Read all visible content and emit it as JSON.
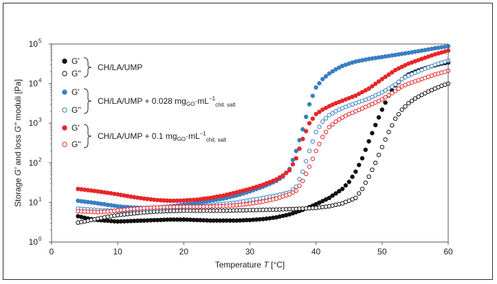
{
  "chart_data": {
    "type": "scatter",
    "xlabel_prefix": "Temperature ",
    "xlabel_var": "T",
    "xlabel_unit": " [°C]",
    "ylabel_prefix": "Storage ",
    "ylabel_var1": "G'",
    "ylabel_mid": " and loss ",
    "ylabel_var2": "G''",
    "ylabel_suffix": " moduli [Pa]",
    "xlim": [
      0,
      60
    ],
    "ylim_log10": [
      0,
      5
    ],
    "x_ticks": [
      "0",
      "10",
      "20",
      "30",
      "40",
      "50",
      "60"
    ],
    "y_ticks": [
      {
        "base": "10",
        "exp": "0"
      },
      {
        "base": "10",
        "exp": "1"
      },
      {
        "base": "10",
        "exp": "2"
      },
      {
        "base": "10",
        "exp": "3"
      },
      {
        "base": "10",
        "exp": "4"
      },
      {
        "base": "10",
        "exp": "5"
      }
    ],
    "colors": {
      "black": "#111111",
      "blue": "#3a7fc1",
      "red": "#e8262a"
    },
    "legend": [
      {
        "group": "CH/LA/UMP",
        "sub": "",
        "sub2": "",
        "color": "#111111",
        "labels": [
          "G'",
          "G''"
        ]
      },
      {
        "group": "CH/LA/UMP + 0.028 mg",
        "sub": "GO",
        "mid": "·mL",
        "sup": "−1",
        "sub2": "chit. salt",
        "color": "#3a7fc1",
        "labels": [
          "G'",
          "G''"
        ]
      },
      {
        "group": "CH/LA/UMP + 0.1 mg",
        "sub": "GO",
        "mid": "·mL",
        "sup": "−1",
        "sub2": "chit. salt",
        "color": "#e8262a",
        "labels": [
          "G'",
          "G''"
        ]
      }
    ],
    "series": [
      {
        "name": "CH/LA/UMP G'",
        "color": "#111111",
        "filled": true,
        "points": [
          [
            4,
            4.5
          ],
          [
            5,
            4.1
          ],
          [
            6,
            3.8
          ],
          [
            7,
            3.6
          ],
          [
            8,
            3.5
          ],
          [
            9,
            3.4
          ],
          [
            10,
            3.3
          ],
          [
            12,
            3.4
          ],
          [
            14,
            3.5
          ],
          [
            16,
            3.6
          ],
          [
            18,
            3.7
          ],
          [
            20,
            3.7
          ],
          [
            22,
            3.6
          ],
          [
            24,
            3.5
          ],
          [
            26,
            3.5
          ],
          [
            28,
            3.5
          ],
          [
            30,
            3.6
          ],
          [
            32,
            3.8
          ],
          [
            34,
            4.2
          ],
          [
            36,
            5
          ],
          [
            38,
            6.5
          ],
          [
            40,
            9
          ],
          [
            42,
            13
          ],
          [
            44,
            22
          ],
          [
            45,
            33
          ],
          [
            46,
            60
          ],
          [
            47,
            130
          ],
          [
            48,
            350
          ],
          [
            49,
            900
          ],
          [
            50,
            2200
          ],
          [
            51,
            5000
          ],
          [
            52,
            9000
          ],
          [
            53,
            13000
          ],
          [
            54,
            17000
          ],
          [
            55,
            20000
          ],
          [
            56,
            23000
          ],
          [
            57,
            26000
          ],
          [
            58,
            29000
          ],
          [
            59,
            32000
          ],
          [
            60,
            34000
          ]
        ]
      },
      {
        "name": "CH/LA/UMP G''",
        "color": "#111111",
        "filled": false,
        "points": [
          [
            4,
            3.1
          ],
          [
            5,
            3.3
          ],
          [
            6,
            3.6
          ],
          [
            7,
            3.9
          ],
          [
            8,
            4.2
          ],
          [
            9,
            4.5
          ],
          [
            10,
            4.8
          ],
          [
            12,
            5.2
          ],
          [
            14,
            5.6
          ],
          [
            16,
            5.9
          ],
          [
            18,
            6.1
          ],
          [
            20,
            6.2
          ],
          [
            22,
            6.2
          ],
          [
            24,
            6.2
          ],
          [
            26,
            6.2
          ],
          [
            28,
            6.3
          ],
          [
            30,
            6.4
          ],
          [
            32,
            6.5
          ],
          [
            34,
            6.6
          ],
          [
            36,
            6.8
          ],
          [
            38,
            7
          ],
          [
            40,
            7.3
          ],
          [
            42,
            8
          ],
          [
            44,
            9.5
          ],
          [
            46,
            13
          ],
          [
            47,
            22
          ],
          [
            48,
            45
          ],
          [
            49,
            100
          ],
          [
            50,
            250
          ],
          [
            51,
            600
          ],
          [
            52,
            1300
          ],
          [
            53,
            2200
          ],
          [
            54,
            3200
          ],
          [
            55,
            4200
          ],
          [
            56,
            5200
          ],
          [
            57,
            6300
          ],
          [
            58,
            7500
          ],
          [
            59,
            8800
          ],
          [
            60,
            10000
          ]
        ]
      },
      {
        "name": "CH/LA/UMP + 0.028 G'",
        "color": "#3a7fc1",
        "filled": true,
        "points": [
          [
            4,
            11
          ],
          [
            5,
            10.5
          ],
          [
            6,
            10
          ],
          [
            7,
            9.5
          ],
          [
            8,
            9
          ],
          [
            9,
            8.5
          ],
          [
            10,
            8
          ],
          [
            12,
            7.5
          ],
          [
            14,
            7.3
          ],
          [
            16,
            7.5
          ],
          [
            18,
            8
          ],
          [
            20,
            8.8
          ],
          [
            22,
            9.8
          ],
          [
            24,
            11
          ],
          [
            26,
            12.5
          ],
          [
            28,
            15
          ],
          [
            30,
            19
          ],
          [
            32,
            25
          ],
          [
            34,
            35
          ],
          [
            35,
            45
          ],
          [
            36,
            70
          ],
          [
            37,
            200
          ],
          [
            38,
            700
          ],
          [
            39,
            3000
          ],
          [
            40,
            8000
          ],
          [
            41,
            13000
          ],
          [
            42,
            18000
          ],
          [
            43,
            23000
          ],
          [
            44,
            28000
          ],
          [
            45,
            32000
          ],
          [
            46,
            36000
          ],
          [
            48,
            42000
          ],
          [
            50,
            47000
          ],
          [
            52,
            53000
          ],
          [
            54,
            60000
          ],
          [
            56,
            68000
          ],
          [
            58,
            78000
          ],
          [
            60,
            88000
          ]
        ]
      },
      {
        "name": "CH/LA/UMP + 0.028 G''",
        "color": "#3a7fc1",
        "filled": false,
        "points": [
          [
            4,
            7
          ],
          [
            5,
            6.8
          ],
          [
            6,
            6.6
          ],
          [
            7,
            6.4
          ],
          [
            8,
            6.3
          ],
          [
            9,
            6.2
          ],
          [
            10,
            6.2
          ],
          [
            12,
            6.4
          ],
          [
            14,
            6.7
          ],
          [
            16,
            7
          ],
          [
            18,
            7.3
          ],
          [
            20,
            7.6
          ],
          [
            22,
            8
          ],
          [
            24,
            8.5
          ],
          [
            26,
            9.2
          ],
          [
            28,
            10
          ],
          [
            30,
            11.5
          ],
          [
            32,
            13
          ],
          [
            34,
            15
          ],
          [
            36,
            18
          ],
          [
            37,
            25
          ],
          [
            38,
            60
          ],
          [
            39,
            200
          ],
          [
            40,
            600
          ],
          [
            41,
            1100
          ],
          [
            42,
            1600
          ],
          [
            43,
            2000
          ],
          [
            44,
            2400
          ],
          [
            45,
            2800
          ],
          [
            46,
            3200
          ],
          [
            48,
            4200
          ],
          [
            50,
            6000
          ],
          [
            52,
            9500
          ],
          [
            53,
            13000
          ],
          [
            54,
            16000
          ],
          [
            56,
            22000
          ],
          [
            58,
            30000
          ],
          [
            60,
            38000
          ]
        ]
      },
      {
        "name": "CH/LA/UMP + 0.1 G'",
        "color": "#e8262a",
        "filled": true,
        "points": [
          [
            4,
            22
          ],
          [
            5,
            21
          ],
          [
            6,
            20
          ],
          [
            7,
            19
          ],
          [
            8,
            18
          ],
          [
            9,
            17
          ],
          [
            10,
            16
          ],
          [
            12,
            14
          ],
          [
            14,
            12.5
          ],
          [
            16,
            11.5
          ],
          [
            18,
            11
          ],
          [
            20,
            11.2
          ],
          [
            22,
            11.8
          ],
          [
            24,
            13
          ],
          [
            26,
            15
          ],
          [
            28,
            18
          ],
          [
            30,
            22
          ],
          [
            32,
            28
          ],
          [
            34,
            38
          ],
          [
            35,
            48
          ],
          [
            36,
            65
          ],
          [
            37,
            130
          ],
          [
            38,
            400
          ],
          [
            39,
            1000
          ],
          [
            40,
            1700
          ],
          [
            41,
            2200
          ],
          [
            42,
            2700
          ],
          [
            43,
            3200
          ],
          [
            44,
            3700
          ],
          [
            45,
            4300
          ],
          [
            46,
            5000
          ],
          [
            48,
            7500
          ],
          [
            50,
            13000
          ],
          [
            52,
            22000
          ],
          [
            54,
            32000
          ],
          [
            56,
            42000
          ],
          [
            58,
            55000
          ],
          [
            60,
            68000
          ]
        ]
      },
      {
        "name": "CH/LA/UMP + 0.1 G''",
        "color": "#e8262a",
        "filled": false,
        "points": [
          [
            4,
            6
          ],
          [
            5,
            5.9
          ],
          [
            6,
            5.8
          ],
          [
            7,
            5.7
          ],
          [
            8,
            5.8
          ],
          [
            9,
            6
          ],
          [
            10,
            6.3
          ],
          [
            12,
            6.8
          ],
          [
            14,
            7.2
          ],
          [
            16,
            7.5
          ],
          [
            18,
            7.7
          ],
          [
            20,
            7.8
          ],
          [
            22,
            7.8
          ],
          [
            24,
            7.9
          ],
          [
            26,
            8.1
          ],
          [
            28,
            8.5
          ],
          [
            30,
            9.3
          ],
          [
            32,
            10.5
          ],
          [
            34,
            12.5
          ],
          [
            36,
            16
          ],
          [
            37,
            20
          ],
          [
            38,
            35
          ],
          [
            39,
            80
          ],
          [
            40,
            200
          ],
          [
            41,
            450
          ],
          [
            42,
            800
          ],
          [
            43,
            1100
          ],
          [
            44,
            1400
          ],
          [
            45,
            1700
          ],
          [
            46,
            2000
          ],
          [
            48,
            2800
          ],
          [
            50,
            4000
          ],
          [
            52,
            6500
          ],
          [
            53,
            8500
          ],
          [
            54,
            10000
          ],
          [
            56,
            13000
          ],
          [
            58,
            17000
          ],
          [
            60,
            21000
          ]
        ]
      }
    ]
  }
}
